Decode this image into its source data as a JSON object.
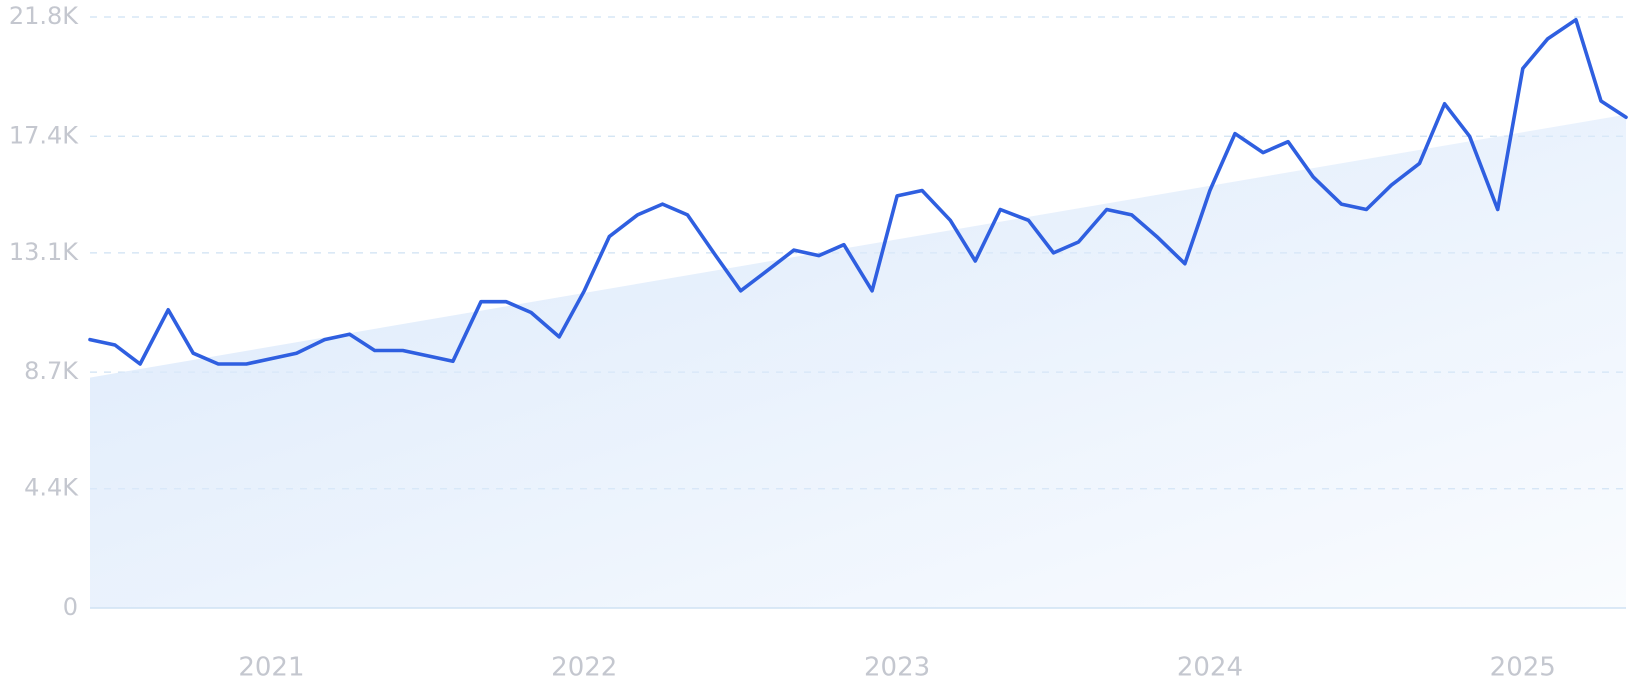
{
  "chart_data": {
    "type": "line",
    "title": "",
    "xlabel": "",
    "ylabel": "",
    "ylim": [
      0,
      21800
    ],
    "y_ticks": [
      {
        "value": 0,
        "label": "0"
      },
      {
        "value": 4400,
        "label": "4.4K"
      },
      {
        "value": 8700,
        "label": "8.7K"
      },
      {
        "value": 13100,
        "label": "13.1K"
      },
      {
        "value": 17400,
        "label": "17.4K"
      },
      {
        "value": 21800,
        "label": "21.8K"
      }
    ],
    "x_ticks": [
      {
        "value": 2021.0,
        "label": "2021"
      },
      {
        "value": 2022.0,
        "label": "2022"
      },
      {
        "value": 2023.0,
        "label": "2023"
      },
      {
        "value": 2024.0,
        "label": "2024"
      },
      {
        "value": 2025.0,
        "label": "2025"
      }
    ],
    "xlim": [
      2020.42,
      2025.33
    ],
    "grid": true,
    "legend": "none",
    "colors": {
      "line": "#2f5fe0",
      "trend_fill": "#dbe9fb",
      "grid": "#cfe2f3",
      "tick_label": "#c4c7cf"
    },
    "series": [
      {
        "values": [
          [
            2020.42,
            9900
          ],
          [
            2020.5,
            9700
          ],
          [
            2020.58,
            9000
          ],
          [
            2020.67,
            11000
          ],
          [
            2020.75,
            9400
          ],
          [
            2020.83,
            9000
          ],
          [
            2020.92,
            9000
          ],
          [
            2021.0,
            9200
          ],
          [
            2021.08,
            9400
          ],
          [
            2021.17,
            9900
          ],
          [
            2021.25,
            10100
          ],
          [
            2021.33,
            9500
          ],
          [
            2021.42,
            9500
          ],
          [
            2021.5,
            9300
          ],
          [
            2021.58,
            9100
          ],
          [
            2021.67,
            11300
          ],
          [
            2021.75,
            11300
          ],
          [
            2021.83,
            10900
          ],
          [
            2021.92,
            10000
          ],
          [
            2022.0,
            11700
          ],
          [
            2022.08,
            13700
          ],
          [
            2022.17,
            14500
          ],
          [
            2022.25,
            14900
          ],
          [
            2022.33,
            14500
          ],
          [
            2022.42,
            13000
          ],
          [
            2022.5,
            11700
          ],
          [
            2022.58,
            12400
          ],
          [
            2022.67,
            13200
          ],
          [
            2022.75,
            13000
          ],
          [
            2022.83,
            13400
          ],
          [
            2022.92,
            11700
          ],
          [
            2023.0,
            15200
          ],
          [
            2023.08,
            15400
          ],
          [
            2023.17,
            14300
          ],
          [
            2023.25,
            12800
          ],
          [
            2023.33,
            14700
          ],
          [
            2023.42,
            14300
          ],
          [
            2023.5,
            13100
          ],
          [
            2023.58,
            13500
          ],
          [
            2023.67,
            14700
          ],
          [
            2023.75,
            14500
          ],
          [
            2023.83,
            13700
          ],
          [
            2023.92,
            12700
          ],
          [
            2024.0,
            15400
          ],
          [
            2024.08,
            17500
          ],
          [
            2024.17,
            16800
          ],
          [
            2024.25,
            17200
          ],
          [
            2024.33,
            15900
          ],
          [
            2024.42,
            14900
          ],
          [
            2024.5,
            14700
          ],
          [
            2024.58,
            15600
          ],
          [
            2024.67,
            16400
          ],
          [
            2024.75,
            18600
          ],
          [
            2024.83,
            17400
          ],
          [
            2024.92,
            14700
          ],
          [
            2025.0,
            19900
          ],
          [
            2025.08,
            21000
          ],
          [
            2025.17,
            21700
          ],
          [
            2025.25,
            18700
          ],
          [
            2025.33,
            18100
          ]
        ]
      }
    ],
    "trend": {
      "start": [
        2020.42,
        8500
      ],
      "end": [
        2025.33,
        18200
      ]
    }
  }
}
